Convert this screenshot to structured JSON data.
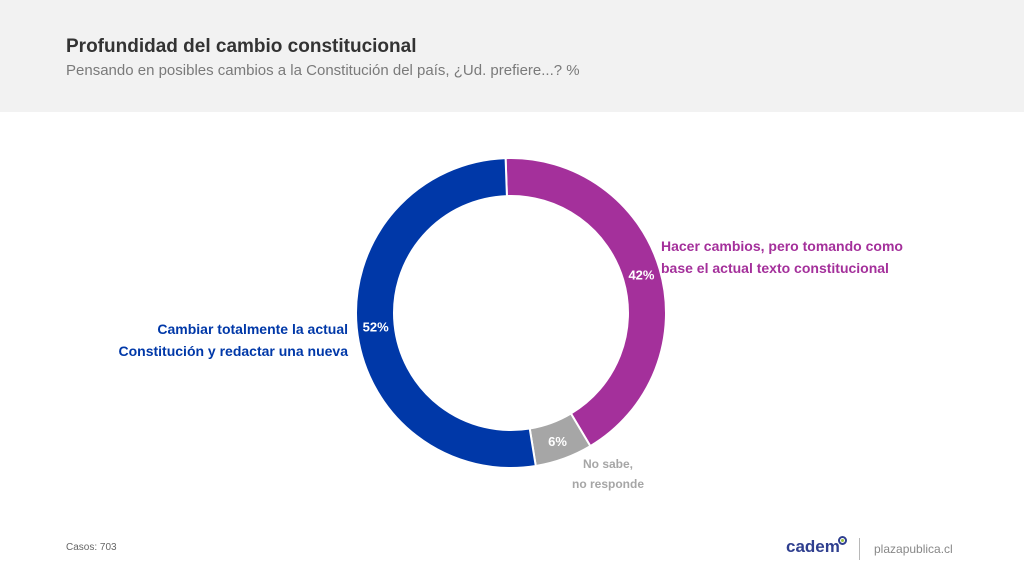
{
  "header": {
    "title": "Profundidad del cambio constitucional",
    "subtitle": "Pensando en posibles cambios a la Constitución del país, ¿Ud. prefiere...? %"
  },
  "chart_data": {
    "type": "pie",
    "donut": true,
    "title": "Profundidad del cambio constitucional",
    "subtitle": "Pensando en posibles cambios a la Constitución del país, ¿Ud. prefiere...? %",
    "unit": "%",
    "slices": [
      {
        "key": "purple",
        "name": "Hacer cambios, pero tomando como base el actual texto constitucional",
        "name_lines": [
          "Hacer cambios, pero tomando como",
          "base el actual texto constitucional"
        ],
        "value": 42,
        "value_label": "42%",
        "color": "#a4309b"
      },
      {
        "key": "gray",
        "name": "No sabe, no responde",
        "name_lines": [
          "No sabe,",
          "no responde"
        ],
        "value": 6,
        "value_label": "6%",
        "color": "#a6a6a6"
      },
      {
        "key": "blue",
        "name": "Cambiar totalmente la actual Constitución y redactar una nueva",
        "name_lines": [
          "Cambiar totalmente la actual",
          "Constitución y redactar una nueva"
        ],
        "value": 52,
        "value_label": "52%",
        "color": "#0038a8"
      }
    ]
  },
  "labels": {
    "blue_color": "#0038a8",
    "purple_color": "#a4309b",
    "gray_color": "#a6a6a6"
  },
  "footer": {
    "cases": "Casos: 703",
    "brand": "cadem",
    "brand_color": "#2f3f8f",
    "site": "plazapublica.cl"
  }
}
